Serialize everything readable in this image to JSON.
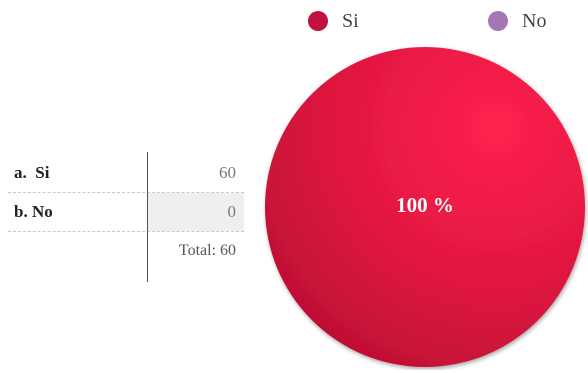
{
  "legend": [
    {
      "label": "Si",
      "color": "#c0123c"
    },
    {
      "label": "No",
      "color": "#a277b3"
    }
  ],
  "table": {
    "rows": [
      {
        "label": "a.  Si",
        "value": "60"
      },
      {
        "label": "b. No",
        "value": "0"
      }
    ],
    "total": "Total: 60"
  },
  "chart_data": {
    "type": "pie",
    "categories": [
      "Si",
      "No"
    ],
    "values": [
      60,
      0
    ],
    "colors": [
      "#e8194a",
      "#a277b3"
    ],
    "slice_labels": [
      "100 %",
      ""
    ],
    "legend_position": "top"
  }
}
